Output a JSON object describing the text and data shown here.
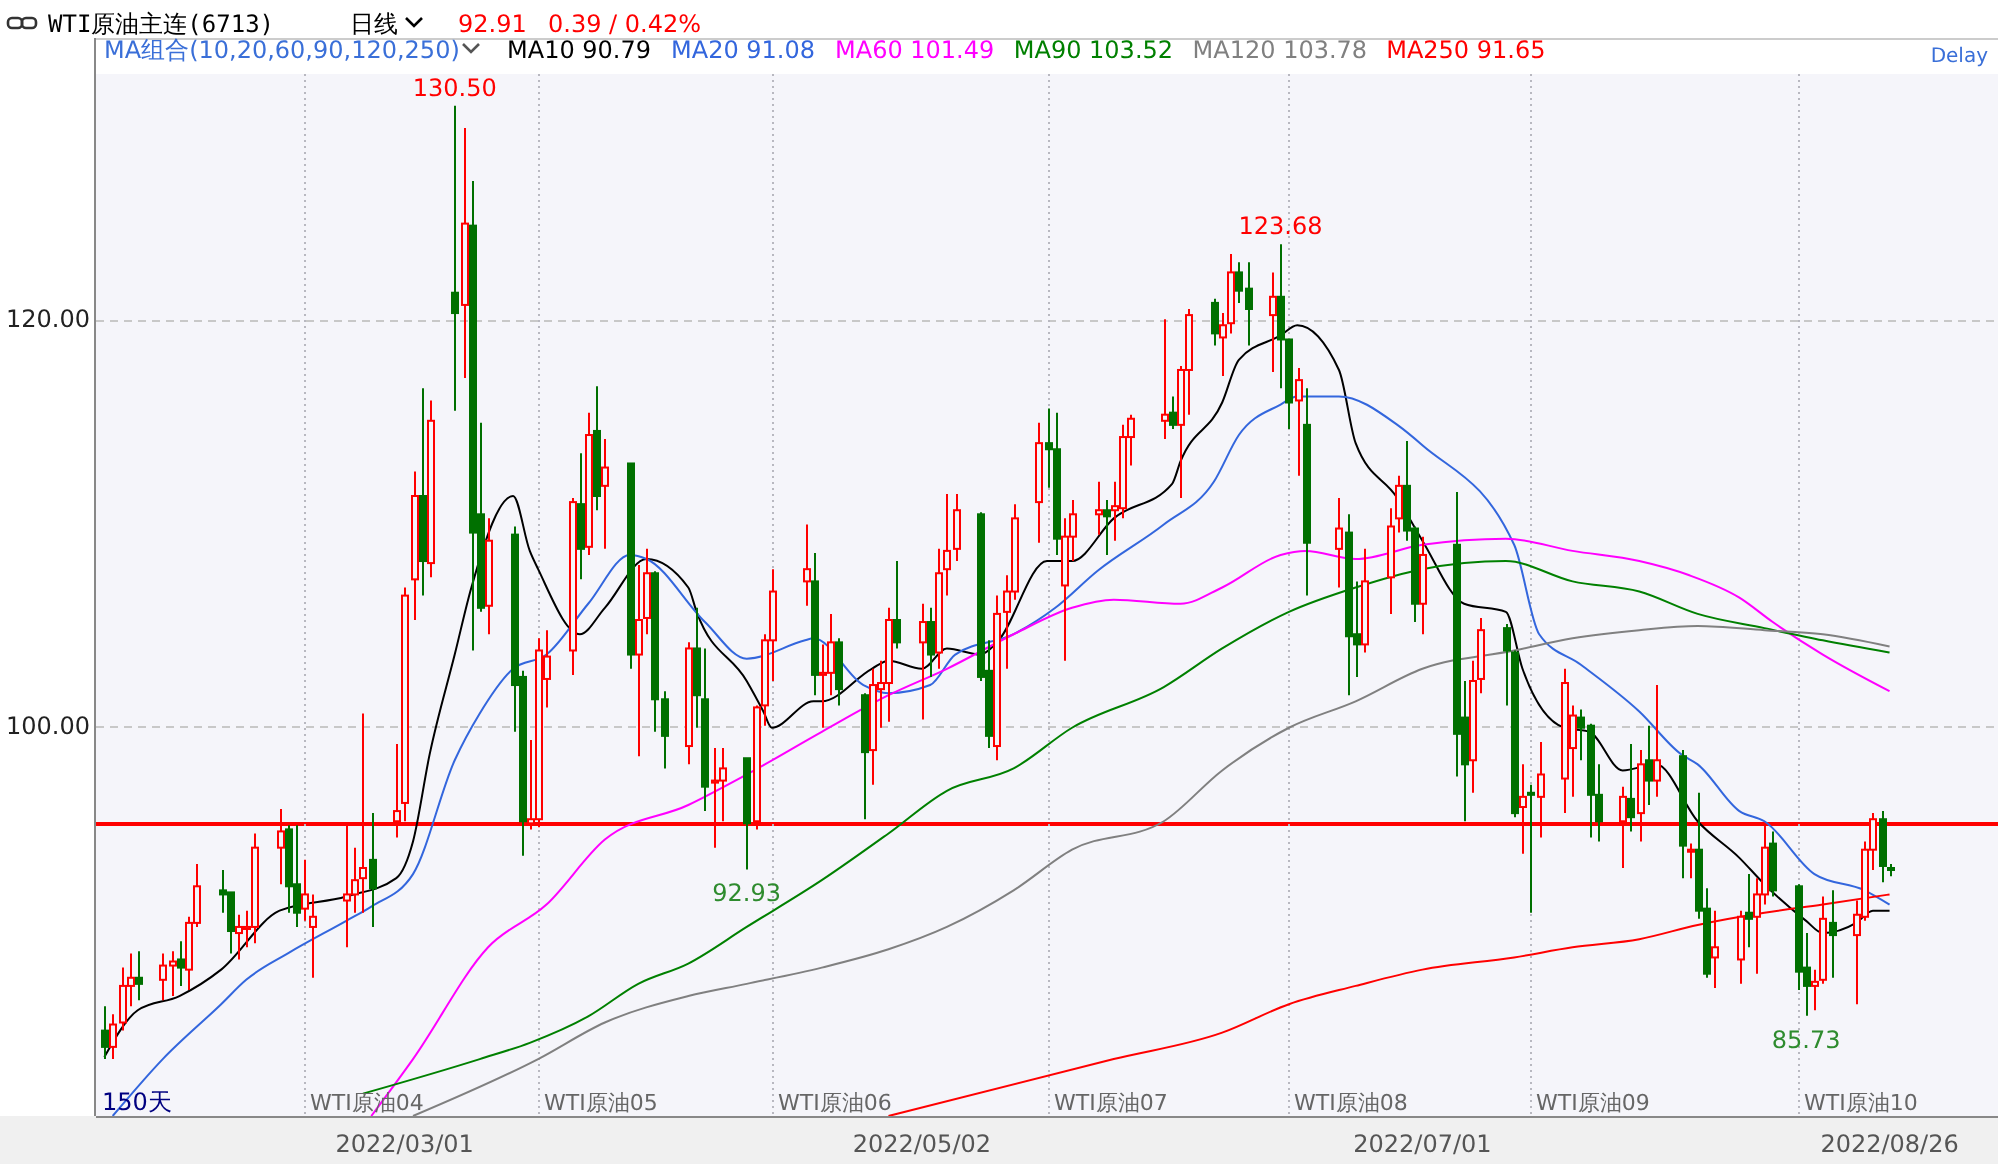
{
  "chart_data": {
    "type": "candlestick",
    "title": "WTI原油主连(6713)",
    "legend_title": "MA组合(10,20,60,90,120,250)",
    "annotations": [
      "日线",
      "92.91",
      "0.39 / 0.42%",
      "150天",
      "Delay",
      {
        "text": "130.50",
        "x": "2022-03-07",
        "y": 130.5
      },
      {
        "text": "92.93",
        "x": "2022-04-11",
        "y": 92.93
      },
      {
        "text": "123.68",
        "x": "2022-06-14",
        "y": 123.68
      },
      {
        "text": "85.73",
        "x": "2022-08-16",
        "y": 85.73
      }
    ],
    "x": [
      "2022-01-24",
      "2022-01-25",
      "2022-01-26",
      "2022-01-27",
      "2022-01-28",
      "2022-01-31",
      "2022-02-01",
      "2022-02-02",
      "2022-02-03",
      "2022-02-04",
      "2022-02-07",
      "2022-02-08",
      "2022-02-09",
      "2022-02-10",
      "2022-02-11",
      "2022-02-14",
      "2022-02-15",
      "2022-02-16",
      "2022-02-17",
      "2022-02-18",
      "2022-02-22",
      "2022-02-23",
      "2022-02-24",
      "2022-02-25",
      "2022-02-28",
      "2022-03-01",
      "2022-03-02",
      "2022-03-03",
      "2022-03-04",
      "2022-03-07",
      "2022-03-08",
      "2022-03-09",
      "2022-03-10",
      "2022-03-11",
      "2022-03-14",
      "2022-03-15",
      "2022-03-16",
      "2022-03-17",
      "2022-03-18",
      "2022-03-21",
      "2022-03-22",
      "2022-03-23",
      "2022-03-24",
      "2022-03-25",
      "2022-03-28",
      "2022-03-29",
      "2022-03-30",
      "2022-03-31",
      "2022-04-01",
      "2022-04-04",
      "2022-04-05",
      "2022-04-06",
      "2022-04-07",
      "2022-04-08",
      "2022-04-11",
      "2022-04-12",
      "2022-04-13",
      "2022-04-14",
      "2022-04-18",
      "2022-04-19",
      "2022-04-20",
      "2022-04-21",
      "2022-04-22",
      "2022-04-25",
      "2022-04-26",
      "2022-04-27",
      "2022-04-28",
      "2022-04-29",
      "2022-05-02",
      "2022-05-03",
      "2022-05-04",
      "2022-05-05",
      "2022-05-06",
      "2022-05-09",
      "2022-05-10",
      "2022-05-11",
      "2022-05-12",
      "2022-05-13",
      "2022-05-16",
      "2022-05-17",
      "2022-05-18",
      "2022-05-19",
      "2022-05-20",
      "2022-05-23",
      "2022-05-24",
      "2022-05-25",
      "2022-05-26",
      "2022-05-27",
      "2022-05-31",
      "2022-06-01",
      "2022-06-02",
      "2022-06-03",
      "2022-06-06",
      "2022-06-07",
      "2022-06-08",
      "2022-06-09",
      "2022-06-10",
      "2022-06-13",
      "2022-06-14",
      "2022-06-15",
      "2022-06-16",
      "2022-06-17",
      "2022-06-21",
      "2022-06-22",
      "2022-06-23",
      "2022-06-24",
      "2022-06-27",
      "2022-06-28",
      "2022-06-29",
      "2022-06-30",
      "2022-07-01",
      "2022-07-05",
      "2022-07-06",
      "2022-07-07",
      "2022-07-08",
      "2022-07-11",
      "2022-07-12",
      "2022-07-13",
      "2022-07-14",
      "2022-07-15",
      "2022-07-18",
      "2022-07-19",
      "2022-07-20",
      "2022-07-21",
      "2022-07-22",
      "2022-07-25",
      "2022-07-26",
      "2022-07-27",
      "2022-07-28",
      "2022-07-29",
      "2022-08-01",
      "2022-08-02",
      "2022-08-03",
      "2022-08-04",
      "2022-08-05",
      "2022-08-08",
      "2022-08-09",
      "2022-08-10",
      "2022-08-11",
      "2022-08-12",
      "2022-08-15",
      "2022-08-16",
      "2022-08-17",
      "2022-08-18",
      "2022-08-19",
      "2022-08-22",
      "2022-08-23",
      "2022-08-24",
      "2022-08-25",
      "2022-08-26"
    ],
    "ohlc": [
      [
        85.0,
        86.2,
        83.6,
        84.2
      ],
      [
        84.2,
        85.8,
        83.6,
        85.3
      ],
      [
        85.4,
        88.1,
        85.0,
        87.2
      ],
      [
        87.2,
        88.8,
        86.2,
        87.6
      ],
      [
        87.6,
        88.9,
        86.5,
        87.3
      ],
      [
        87.5,
        88.8,
        86.5,
        88.2
      ],
      [
        88.2,
        88.9,
        86.7,
        88.4
      ],
      [
        88.5,
        89.4,
        87.2,
        88.1
      ],
      [
        88.0,
        90.6,
        87.0,
        90.3
      ],
      [
        90.3,
        93.2,
        90.1,
        92.1
      ],
      [
        91.9,
        92.9,
        90.8,
        91.7
      ],
      [
        91.8,
        91.8,
        88.8,
        89.9
      ],
      [
        89.8,
        90.7,
        88.5,
        90.1
      ],
      [
        90.0,
        90.9,
        89.1,
        90.1
      ],
      [
        90.1,
        94.7,
        89.3,
        94.0
      ],
      [
        94.0,
        95.9,
        92.2,
        94.8
      ],
      [
        94.9,
        95.1,
        90.8,
        92.1
      ],
      [
        92.2,
        95.1,
        90.1,
        90.8
      ],
      [
        91.0,
        93.4,
        90.4,
        91.7
      ],
      [
        90.1,
        91.7,
        87.6,
        90.6
      ],
      [
        91.4,
        95.1,
        89.1,
        91.7
      ],
      [
        91.7,
        94.0,
        90.8,
        92.4
      ],
      [
        92.5,
        100.6,
        90.8,
        93.0
      ],
      [
        93.4,
        95.7,
        90.1,
        92.0
      ],
      [
        95.3,
        99.1,
        94.5,
        95.8
      ],
      [
        96.2,
        106.8,
        95.3,
        106.4
      ],
      [
        107.2,
        112.5,
        105.2,
        111.3
      ],
      [
        111.3,
        116.6,
        106.4,
        108.1
      ],
      [
        108.0,
        116.0,
        107.3,
        115.0
      ],
      [
        121.3,
        130.5,
        115.5,
        120.3
      ],
      [
        120.7,
        129.4,
        117.1,
        124.7
      ],
      [
        124.6,
        126.8,
        103.7,
        109.5
      ],
      [
        110.4,
        114.9,
        105.6,
        105.8
      ],
      [
        105.9,
        110.2,
        104.5,
        109.1
      ],
      [
        109.4,
        109.8,
        99.7,
        102.0
      ],
      [
        102.4,
        102.7,
        93.6,
        95.3
      ],
      [
        95.2,
        99.3,
        94.9,
        95.4
      ],
      [
        95.4,
        104.3,
        95.0,
        103.7
      ],
      [
        102.3,
        104.7,
        100.9,
        103.4
      ],
      [
        103.7,
        111.2,
        102.5,
        111.0
      ],
      [
        110.9,
        113.4,
        107.2,
        108.7
      ],
      [
        108.8,
        115.4,
        108.4,
        114.3
      ],
      [
        114.5,
        116.7,
        110.6,
        111.3
      ],
      [
        111.8,
        114.1,
        108.7,
        112.7
      ],
      [
        112.9,
        112.9,
        102.8,
        103.5
      ],
      [
        103.5,
        107.9,
        98.5,
        105.2
      ],
      [
        105.3,
        108.7,
        104.5,
        107.5
      ],
      [
        107.5,
        107.6,
        99.7,
        101.3
      ],
      [
        101.3,
        101.7,
        97.9,
        99.5
      ],
      [
        99.0,
        104.1,
        98.1,
        103.8
      ],
      [
        103.8,
        105.8,
        99.9,
        101.5
      ],
      [
        101.3,
        103.8,
        95.8,
        97.0
      ],
      [
        97.2,
        98.9,
        94.0,
        97.3
      ],
      [
        97.3,
        98.9,
        95.3,
        97.9
      ],
      [
        98.4,
        98.4,
        92.93,
        95.2
      ],
      [
        95.3,
        101.0,
        94.9,
        100.9
      ],
      [
        101.0,
        104.5,
        100.0,
        104.2
      ],
      [
        104.2,
        107.7,
        102.2,
        106.6
      ],
      [
        107.1,
        109.9,
        105.9,
        107.7
      ],
      [
        107.1,
        108.5,
        101.5,
        102.5
      ],
      [
        102.5,
        104.0,
        99.9,
        102.6
      ],
      [
        102.6,
        105.5,
        101.5,
        104.1
      ],
      [
        104.1,
        104.3,
        101.0,
        101.8
      ],
      [
        101.5,
        101.6,
        95.4,
        98.7
      ],
      [
        98.8,
        102.8,
        97.1,
        102.0
      ],
      [
        101.8,
        103.2,
        99.9,
        102.1
      ],
      [
        102.1,
        105.8,
        100.2,
        105.2
      ],
      [
        105.2,
        108.1,
        103.8,
        104.1
      ],
      [
        104.1,
        106.0,
        100.3,
        105.1
      ],
      [
        105.1,
        105.8,
        102.4,
        103.5
      ],
      [
        103.6,
        108.7,
        102.8,
        107.5
      ],
      [
        107.7,
        111.4,
        106.4,
        108.6
      ],
      [
        108.7,
        111.4,
        108.1,
        110.6
      ],
      [
        110.4,
        110.5,
        102.2,
        102.4
      ],
      [
        102.7,
        104.2,
        98.9,
        99.5
      ],
      [
        99.0,
        106.4,
        98.3,
        105.5
      ],
      [
        105.6,
        107.4,
        102.8,
        106.6
      ],
      [
        106.6,
        110.9,
        106.2,
        110.2
      ],
      [
        111.0,
        114.9,
        109.0,
        113.9
      ],
      [
        113.9,
        115.6,
        111.7,
        113.6
      ],
      [
        113.6,
        115.4,
        108.4,
        109.2
      ],
      [
        106.9,
        110.2,
        103.2,
        109.3
      ],
      [
        109.3,
        111.1,
        108.1,
        110.4
      ],
      [
        110.4,
        112.0,
        109.4,
        110.6
      ],
      [
        110.6,
        111.1,
        108.4,
        110.3
      ],
      [
        110.6,
        112.0,
        109.1,
        110.8
      ],
      [
        110.7,
        114.8,
        110.2,
        114.2
      ],
      [
        114.2,
        115.3,
        112.8,
        115.1
      ],
      [
        115.0,
        120.0,
        114.1,
        115.3
      ],
      [
        115.4,
        116.2,
        114.6,
        114.8
      ],
      [
        114.8,
        117.7,
        111.2,
        117.5
      ],
      [
        117.5,
        120.5,
        115.3,
        120.2
      ],
      [
        120.8,
        121.0,
        118.7,
        119.3
      ],
      [
        119.1,
        120.3,
        117.2,
        119.7
      ],
      [
        119.8,
        123.2,
        119.3,
        122.3
      ],
      [
        122.3,
        122.8,
        120.8,
        121.4
      ],
      [
        121.5,
        122.8,
        118.7,
        120.5
      ],
      [
        120.2,
        122.3,
        117.4,
        121.1
      ],
      [
        121.1,
        123.68,
        116.6,
        119.0
      ],
      [
        119.0,
        119.0,
        114.6,
        115.9
      ],
      [
        116.0,
        117.6,
        112.3,
        117.0
      ],
      [
        114.8,
        116.6,
        106.4,
        109.0
      ],
      [
        108.7,
        111.2,
        106.8,
        109.7
      ],
      [
        109.5,
        110.4,
        101.5,
        104.4
      ],
      [
        104.5,
        107.1,
        102.4,
        104.0
      ],
      [
        104.0,
        108.7,
        103.6,
        107.1
      ],
      [
        107.3,
        110.7,
        105.5,
        109.8
      ],
      [
        110.2,
        112.3,
        109.5,
        111.8
      ],
      [
        111.8,
        114.0,
        109.1,
        109.6
      ],
      [
        109.7,
        109.8,
        105.1,
        106.0
      ],
      [
        106.0,
        109.3,
        104.5,
        108.4
      ],
      [
        108.9,
        111.5,
        97.5,
        99.6
      ],
      [
        100.4,
        102.2,
        95.3,
        98.1
      ],
      [
        98.3,
        103.2,
        96.7,
        102.2
      ],
      [
        102.3,
        105.3,
        101.6,
        104.7
      ],
      [
        104.8,
        105.0,
        101.0,
        103.7
      ],
      [
        103.6,
        103.7,
        95.5,
        95.7
      ],
      [
        96.0,
        98.1,
        93.7,
        96.5
      ],
      [
        96.7,
        97.1,
        90.8,
        96.6
      ],
      [
        96.5,
        99.2,
        94.5,
        97.6
      ],
      [
        97.4,
        102.8,
        95.7,
        102.1
      ],
      [
        98.9,
        101.0,
        96.5,
        100.5
      ],
      [
        100.4,
        100.8,
        98.3,
        99.9
      ],
      [
        100.0,
        100.1,
        94.5,
        96.6
      ],
      [
        96.6,
        98.1,
        94.3,
        95.3
      ],
      [
        95.3,
        97.0,
        93.0,
        96.5
      ],
      [
        96.4,
        99.1,
        94.8,
        95.5
      ],
      [
        95.7,
        98.8,
        94.3,
        98.1
      ],
      [
        98.3,
        100.0,
        96.1,
        97.3
      ],
      [
        97.3,
        102.0,
        96.5,
        98.3
      ],
      [
        98.5,
        98.8,
        92.5,
        94.1
      ],
      [
        93.8,
        94.2,
        92.5,
        93.9
      ],
      [
        93.9,
        96.7,
        90.5,
        90.9
      ],
      [
        91.0,
        92.0,
        87.6,
        87.8
      ],
      [
        88.6,
        90.9,
        87.1,
        89.1
      ],
      [
        88.5,
        90.9,
        87.3,
        90.6
      ],
      [
        90.8,
        92.7,
        89.1,
        90.5
      ],
      [
        90.6,
        92.5,
        87.8,
        91.7
      ],
      [
        91.7,
        95.1,
        91.2,
        94.0
      ],
      [
        94.2,
        94.8,
        91.6,
        91.9
      ],
      [
        92.1,
        92.2,
        87.0,
        87.9
      ],
      [
        88.1,
        89.8,
        85.73,
        87.2
      ],
      [
        87.2,
        88.0,
        86.0,
        87.4
      ],
      [
        87.5,
        91.6,
        87.3,
        90.5
      ],
      [
        90.3,
        91.9,
        87.6,
        89.7
      ],
      [
        89.7,
        91.4,
        86.3,
        90.7
      ],
      [
        90.6,
        94.3,
        90.4,
        93.9
      ],
      [
        93.9,
        95.7,
        92.9,
        95.4
      ],
      [
        95.4,
        95.8,
        92.3,
        93.1
      ],
      [
        93.0,
        93.2,
        92.6,
        92.91
      ]
    ],
    "series": [
      {
        "type": "line",
        "name": "MA10 90.79",
        "color": "#000000",
        "x": [
          "2022-01-24",
          "2022-01-28",
          "2022-02-02",
          "2022-02-07",
          "2022-02-14",
          "2022-02-22",
          "2022-02-28",
          "2022-03-02",
          "2022-03-04",
          "2022-03-07",
          "2022-03-09",
          "2022-03-14",
          "2022-03-16",
          "2022-03-17",
          "2022-03-22",
          "2022-03-25",
          "2022-03-30",
          "2022-04-04",
          "2022-04-05",
          "2022-04-11",
          "2022-04-13",
          "2022-04-14",
          "2022-04-19",
          "2022-04-20",
          "2022-04-26",
          "2022-04-28",
          "2022-05-02",
          "2022-05-05",
          "2022-05-09",
          "2022-05-11",
          "2022-05-17",
          "2022-05-20",
          "2022-05-25",
          "2022-06-01",
          "2022-06-02",
          "2022-06-07",
          "2022-06-09",
          "2022-06-14",
          "2022-06-16",
          "2022-06-21",
          "2022-06-23",
          "2022-06-28",
          "2022-07-01",
          "2022-07-06",
          "2022-07-11",
          "2022-07-13",
          "2022-07-18",
          "2022-07-21",
          "2022-07-25",
          "2022-07-29",
          "2022-08-03",
          "2022-08-08",
          "2022-08-11",
          "2022-08-16",
          "2022-08-18",
          "2022-08-22",
          "2022-08-24",
          "2022-08-26"
        ],
        "values": [
          83.7,
          86.0,
          86.7,
          88.0,
          90.9,
          91.6,
          92.5,
          94.3,
          98.6,
          103.5,
          106.8,
          111.3,
          108.6,
          107.7,
          104.5,
          105.8,
          108.2,
          106.8,
          105.6,
          102.2,
          100.7,
          99.9,
          101.2,
          101.2,
          102.8,
          103.2,
          102.8,
          103.8,
          103.5,
          104.1,
          108.1,
          108.1,
          110.2,
          111.9,
          113.0,
          115.9,
          118.0,
          119.2,
          119.7,
          117.5,
          113.9,
          111.2,
          109.1,
          106.0,
          105.6,
          102.8,
          99.9,
          99.7,
          97.8,
          98.1,
          95.3,
          93.5,
          92.2,
          90.4,
          89.8,
          90.3,
          90.9,
          90.9
        ]
      },
      {
        "type": "line",
        "name": "MA20 91.08",
        "color": "#3366dd",
        "x": [
          "2022-01-25",
          "2022-01-31",
          "2022-02-07",
          "2022-02-10",
          "2022-02-15",
          "2022-02-22",
          "2022-02-25",
          "2022-03-02",
          "2022-03-07",
          "2022-03-10",
          "2022-03-14",
          "2022-03-18",
          "2022-03-23",
          "2022-03-28",
          "2022-03-30",
          "2022-04-06",
          "2022-04-11",
          "2022-04-18",
          "2022-04-19",
          "2022-04-25",
          "2022-04-28",
          "2022-05-03",
          "2022-05-06",
          "2022-05-13",
          "2022-05-18",
          "2022-05-23",
          "2022-05-31",
          "2022-06-06",
          "2022-06-09",
          "2022-06-14",
          "2022-06-16",
          "2022-06-21",
          "2022-06-28",
          "2022-07-01",
          "2022-07-12",
          "2022-07-15",
          "2022-07-20",
          "2022-07-27",
          "2022-08-01",
          "2022-08-03",
          "2022-08-08",
          "2022-08-11",
          "2022-08-17",
          "2022-08-23",
          "2022-08-26"
        ],
        "values": [
          80.8,
          83.6,
          86.3,
          87.5,
          88.8,
          90.4,
          91.1,
          92.7,
          98.3,
          100.6,
          102.8,
          103.5,
          106.0,
          108.4,
          108.2,
          105.1,
          103.3,
          104.2,
          104.3,
          102.0,
          101.6,
          102.0,
          103.5,
          104.5,
          105.8,
          107.6,
          109.9,
          112.0,
          114.3,
          115.8,
          116.2,
          116.2,
          114.8,
          113.8,
          108.9,
          104.5,
          103.0,
          100.7,
          98.6,
          98.1,
          95.8,
          95.3,
          92.7,
          91.9,
          91.2
        ]
      },
      {
        "type": "line",
        "name": "MA60 101.49",
        "color": "#ff00ff",
        "x": [
          "2022-02-25",
          "2022-03-02",
          "2022-03-11",
          "2022-03-18",
          "2022-03-25",
          "2022-04-04",
          "2022-04-11",
          "2022-04-20",
          "2022-04-28",
          "2022-05-05",
          "2022-05-13",
          "2022-05-20",
          "2022-05-25",
          "2022-06-02",
          "2022-06-07",
          "2022-06-14",
          "2022-06-17",
          "2022-06-23",
          "2022-07-01",
          "2022-07-11",
          "2022-07-19",
          "2022-07-27",
          "2022-08-02",
          "2022-08-08",
          "2022-08-12",
          "2022-08-18",
          "2022-08-26"
        ],
        "values": [
          80.8,
          83.6,
          89.1,
          91.2,
          94.4,
          96.1,
          97.6,
          99.7,
          101.5,
          102.8,
          104.5,
          105.8,
          106.2,
          106.0,
          106.8,
          108.4,
          108.6,
          108.2,
          108.9,
          109.2,
          108.6,
          108.1,
          107.4,
          106.3,
          105.1,
          103.5,
          101.7
        ]
      },
      {
        "type": "line",
        "name": "MA90 103.52",
        "color": "#008000",
        "x": [
          "2022-02-24",
          "2022-03-10",
          "2022-03-16",
          "2022-03-23",
          "2022-03-29",
          "2022-04-04",
          "2022-04-11",
          "2022-04-20",
          "2022-04-28",
          "2022-05-05",
          "2022-05-13",
          "2022-05-20",
          "2022-05-31",
          "2022-06-07",
          "2022-06-15",
          "2022-06-23",
          "2022-07-01",
          "2022-07-11",
          "2022-07-19",
          "2022-07-27",
          "2022-08-03",
          "2022-08-11",
          "2022-08-18",
          "2022-08-26"
        ],
        "values": [
          81.9,
          83.6,
          84.4,
          85.7,
          87.3,
          88.3,
          90.1,
          92.4,
          94.7,
          96.8,
          97.9,
          99.9,
          101.9,
          103.8,
          105.6,
          106.8,
          107.7,
          108.1,
          107.1,
          106.6,
          105.5,
          104.8,
          104.2,
          103.6
        ]
      },
      {
        "type": "line",
        "name": "MA120 103.78",
        "color": "#808080",
        "x": [
          "2022-03-02",
          "2022-03-17",
          "2022-03-25",
          "2022-04-04",
          "2022-04-11",
          "2022-04-20",
          "2022-04-28",
          "2022-05-05",
          "2022-05-13",
          "2022-05-20",
          "2022-05-31",
          "2022-06-07",
          "2022-06-15",
          "2022-06-23",
          "2022-07-01",
          "2022-07-12",
          "2022-07-19",
          "2022-07-27",
          "2022-08-03",
          "2022-08-11",
          "2022-08-18",
          "2022-08-26"
        ],
        "values": [
          80.8,
          83.6,
          85.4,
          86.7,
          87.3,
          88.1,
          89.0,
          90.1,
          91.9,
          93.9,
          95.3,
          97.8,
          99.9,
          101.2,
          102.8,
          103.7,
          104.3,
          104.7,
          104.9,
          104.7,
          104.5,
          103.9
        ]
      },
      {
        "type": "line",
        "name": "MA250 91.65",
        "color": "#ff0000",
        "x": [
          "2022-04-28",
          "2022-05-25",
          "2022-06-07",
          "2022-06-15",
          "2022-06-23",
          "2022-07-01",
          "2022-07-12",
          "2022-07-19",
          "2022-07-27",
          "2022-08-03",
          "2022-08-11",
          "2022-08-18",
          "2022-08-26"
        ],
        "values": [
          80.8,
          83.6,
          84.9,
          86.3,
          87.2,
          88.0,
          88.6,
          89.1,
          89.5,
          90.2,
          90.8,
          91.2,
          91.7
        ]
      }
    ],
    "ref_lines": [
      {
        "axis": "y",
        "value": 95.16,
        "color": "#ff0000"
      },
      {
        "axis": "x",
        "value": "2022-02-17",
        "label": "WTI原油04",
        "line_style": "dotted"
      },
      {
        "axis": "x",
        "value": "2022-03-17",
        "label": "WTI原油05",
        "line_style": "dotted"
      },
      {
        "axis": "x",
        "value": "2022-04-14",
        "label": "WTI原油06",
        "line_style": "dotted"
      },
      {
        "axis": "x",
        "value": "2022-05-17",
        "label": "WTI原油07",
        "line_style": "dotted"
      },
      {
        "axis": "x",
        "value": "2022-06-15",
        "label": "WTI原油08",
        "line_style": "dotted"
      },
      {
        "axis": "x",
        "value": "2022-07-14",
        "label": "WTI原油09",
        "line_style": "dotted"
      },
      {
        "axis": "x",
        "value": "2022-08-15",
        "label": "WTI原油10",
        "line_style": "dotted"
      }
    ],
    "xlim": [
      "2022-01-23",
      "2022-09-08"
    ],
    "xticks": [
      {
        "value": "2022-03-01",
        "label": "2022/03/01"
      },
      {
        "value": "2022-05-02",
        "label": "2022/05/02"
      },
      {
        "value": "2022-07-01",
        "label": "2022/07/01"
      },
      {
        "value": "2022-08-26",
        "label": "2022/08/26"
      }
    ],
    "ylim": [
      80.8,
      132.06
    ],
    "yticks": [
      {
        "value": 100,
        "label": "100.00"
      },
      {
        "value": 120,
        "label": "120.00"
      }
    ],
    "grid": "y",
    "legend": "top"
  }
}
